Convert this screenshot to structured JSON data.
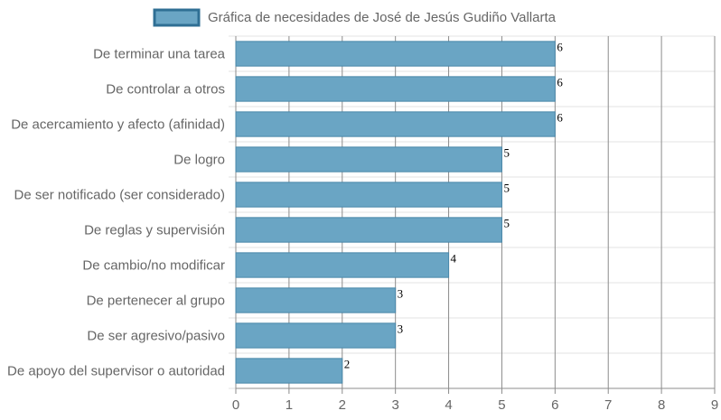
{
  "chart_data": {
    "type": "bar",
    "orientation": "horizontal",
    "legend": {
      "label": "Gráfica de necesidades de José de Jesús Gudiño Vallarta",
      "position": "top"
    },
    "categories": [
      "De terminar una tarea",
      "De controlar a otros",
      "De acercamiento y afecto (afinidad)",
      "De logro",
      "De ser notificado (ser considerado)",
      "De reglas y supervisión",
      "De cambio/no modificar",
      "De pertenecer al grupo",
      "De ser agresivo/pasivo",
      "De apoyo del supervisor o autoridad"
    ],
    "values": [
      6,
      6,
      6,
      5,
      5,
      5,
      4,
      3,
      3,
      2
    ],
    "xlim": [
      0,
      9
    ],
    "x_ticks": [
      "0",
      "1",
      "2",
      "3",
      "4",
      "5",
      "6",
      "7",
      "8",
      "9"
    ],
    "grid": true,
    "colors": {
      "bar_fill": "#6aa5c4",
      "bar_border": "#4a88aa",
      "legend_swatch": "#6aa5c4",
      "legend_border": "#2f6f94",
      "grid_vertical": "#8c8c8c",
      "grid_horizontal": "#e3e3e3"
    }
  }
}
